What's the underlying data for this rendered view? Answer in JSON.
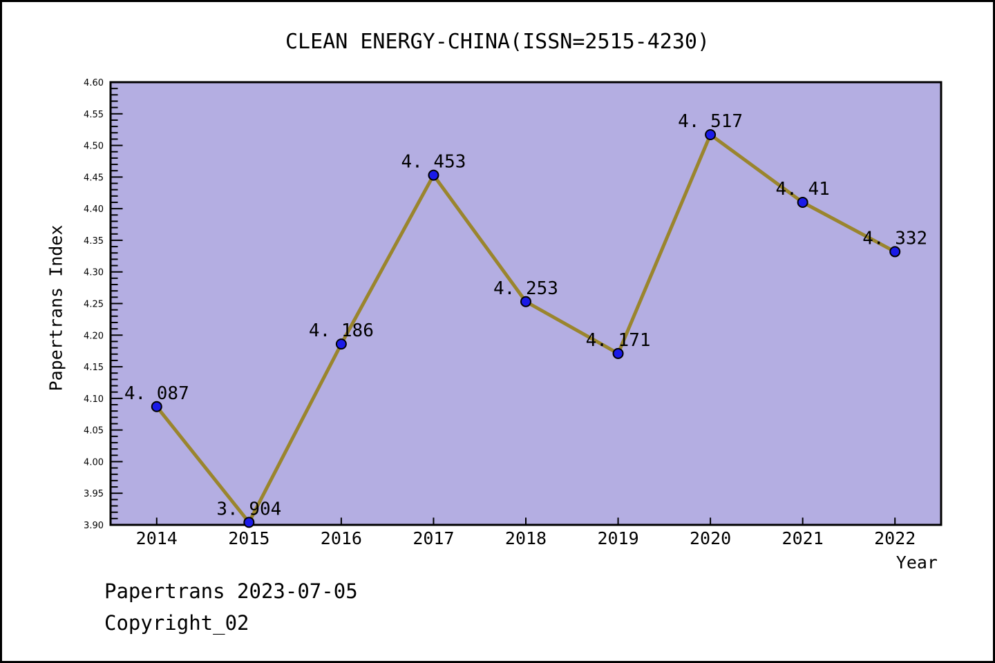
{
  "window": {
    "background": "#ffffff",
    "border_color": "#000000"
  },
  "chart_data": {
    "type": "line",
    "title": "CLEAN ENERGY-CHINA(ISSN=2515-4230)",
    "xlabel": "Year",
    "ylabel": "Papertrans Index",
    "x": [
      2014,
      2015,
      2016,
      2017,
      2018,
      2019,
      2020,
      2021,
      2022
    ],
    "values": [
      4.087,
      3.904,
      4.186,
      4.453,
      4.253,
      4.171,
      4.517,
      4.41,
      4.332
    ],
    "point_labels": [
      "4. 087",
      "3. 904",
      "4. 186",
      "4. 453",
      "4. 253",
      "4. 171",
      "4. 517",
      "4. 41",
      "4. 332"
    ],
    "x_tick_labels": [
      "2014",
      "2015",
      "2016",
      "2017",
      "2018",
      "2019",
      "2020",
      "2021",
      "2022"
    ],
    "y_tick_labels": [
      "3.90",
      "3.95",
      "4.00",
      "4.05",
      "4.10",
      "4.15",
      "4.20",
      "4.25",
      "4.30",
      "4.35",
      "4.40",
      "4.45",
      "4.50",
      "4.55",
      "4.60"
    ],
    "xlim": [
      2013.5,
      2022.5
    ],
    "ylim": [
      3.9,
      4.6
    ],
    "y_major_step": 0.05,
    "y_minor_step": 0.01,
    "grid": false,
    "legend": "none",
    "plot_bg": "#b4aee2",
    "line_color": "#9a852d",
    "marker_color": "#1a1ae8",
    "marker_edge_color": "#000000",
    "axis_color": "#000000"
  },
  "footer": {
    "line1": "Papertrans 2023-07-05",
    "line2": "Copyright_02"
  }
}
